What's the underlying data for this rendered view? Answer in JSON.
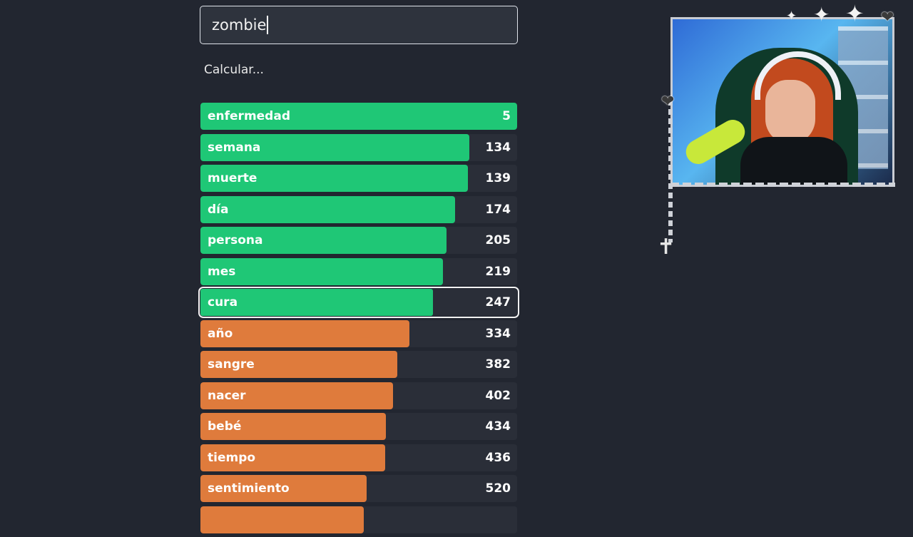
{
  "search": {
    "value": "zombie"
  },
  "status_text": "Calcular...",
  "colors": {
    "green": "#1fc776",
    "orange": "#df7b3c",
    "track": "#2a2e38",
    "background": "#222630"
  },
  "words": [
    {
      "word": "enfermedad",
      "rank": "5",
      "fill": 1.0,
      "color": "green",
      "current": false
    },
    {
      "word": "semana",
      "rank": "134",
      "fill": 0.85,
      "color": "green",
      "current": false
    },
    {
      "word": "muerte",
      "rank": "139",
      "fill": 0.845,
      "color": "green",
      "current": false
    },
    {
      "word": "día",
      "rank": "174",
      "fill": 0.805,
      "color": "green",
      "current": false
    },
    {
      "word": "persona",
      "rank": "205",
      "fill": 0.778,
      "color": "green",
      "current": false
    },
    {
      "word": "mes",
      "rank": "219",
      "fill": 0.765,
      "color": "green",
      "current": false
    },
    {
      "word": "cura",
      "rank": "247",
      "fill": 0.735,
      "color": "green",
      "current": true
    },
    {
      "word": "año",
      "rank": "334",
      "fill": 0.66,
      "color": "orange",
      "current": false
    },
    {
      "word": "sangre",
      "rank": "382",
      "fill": 0.622,
      "color": "orange",
      "current": false
    },
    {
      "word": "nacer",
      "rank": "402",
      "fill": 0.608,
      "color": "orange",
      "current": false
    },
    {
      "word": "bebé",
      "rank": "434",
      "fill": 0.585,
      "color": "orange",
      "current": false
    },
    {
      "word": "tiempo",
      "rank": "436",
      "fill": 0.583,
      "color": "orange",
      "current": false
    },
    {
      "word": "sentimiento",
      "rank": "520",
      "fill": 0.525,
      "color": "orange",
      "current": false
    },
    {
      "word": "",
      "rank": "",
      "fill": 0.515,
      "color": "orange",
      "current": false
    }
  ],
  "overlay": {
    "webcam": "streamer-webcam",
    "decorations": [
      "heart-icon",
      "sparkle-icon",
      "chain",
      "cross-icon"
    ]
  }
}
